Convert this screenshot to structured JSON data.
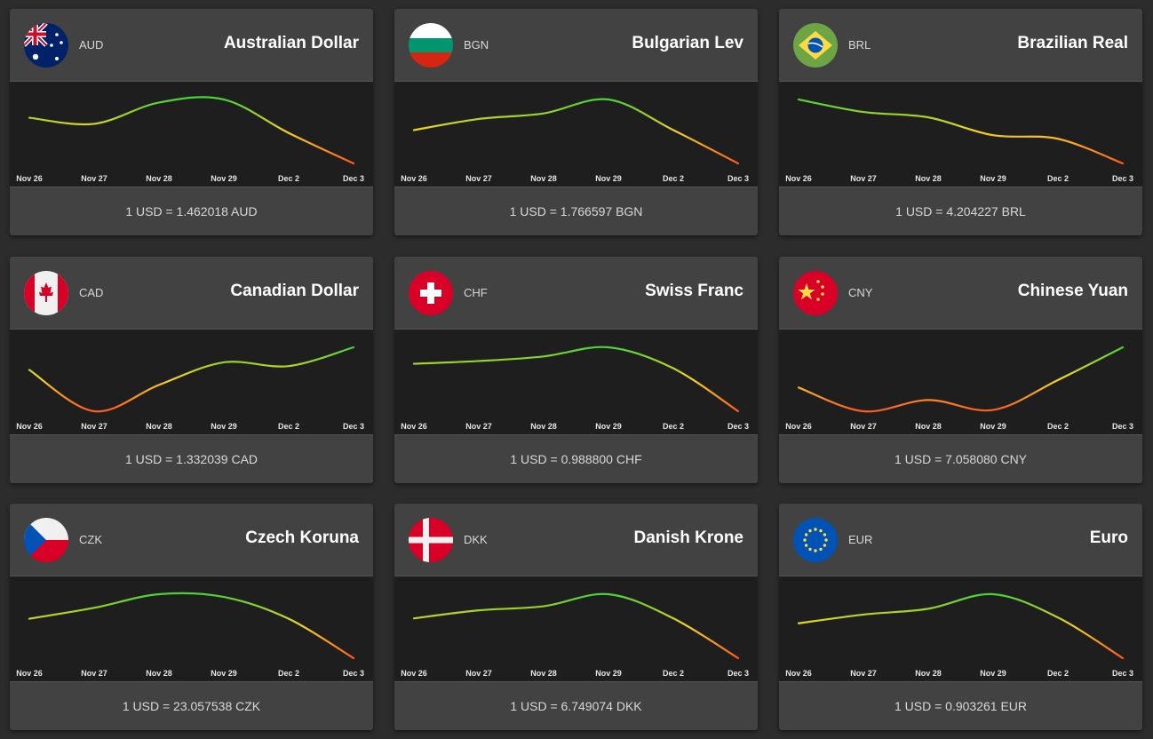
{
  "dates": [
    "Nov 26",
    "Nov 27",
    "Nov 28",
    "Nov 29",
    "Dec 2",
    "Dec 3"
  ],
  "gradient_colors": {
    "high": "#4cd137",
    "mid": "#f5d41f",
    "low": "#ff5a1f"
  },
  "currencies": [
    {
      "code": "AUD",
      "name": "Australian Dollar",
      "rate_text": "1 USD = 1.462018 AUD",
      "flag_icon": "australia-flag-icon",
      "trend": [
        1.4635,
        1.4633,
        1.464,
        1.4641,
        1.463,
        1.462
      ]
    },
    {
      "code": "BGN",
      "name": "Bulgarian Lev",
      "rate_text": "1 USD = 1.766597 BGN",
      "flag_icon": "bulgaria-flag-icon",
      "trend": [
        1.769,
        1.7698,
        1.7702,
        1.7712,
        1.769,
        1.7666
      ]
    },
    {
      "code": "BRL",
      "name": "Brazilian Real",
      "rate_text": "1 USD = 4.204227 BRL",
      "flag_icon": "brazil-flag-icon",
      "trend": [
        4.24,
        4.233,
        4.23,
        4.22,
        4.218,
        4.2042
      ]
    },
    {
      "code": "CAD",
      "name": "Canadian Dollar",
      "rate_text": "1 USD = 1.332039 CAD",
      "flag_icon": "canada-flag-icon",
      "trend": [
        1.329,
        1.3235,
        1.327,
        1.33,
        1.3295,
        1.332
      ]
    },
    {
      "code": "CHF",
      "name": "Swiss Franc",
      "rate_text": "1 USD = 0.988800 CHF",
      "flag_icon": "switzerland-flag-icon",
      "trend": [
        0.994,
        0.9943,
        0.9948,
        0.9958,
        0.9935,
        0.9888
      ]
    },
    {
      "code": "CNY",
      "name": "Chinese Yuan",
      "rate_text": "1 USD = 7.058080 CNY",
      "flag_icon": "china-flag-icon",
      "trend": [
        7.042,
        7.0325,
        7.037,
        7.033,
        7.045,
        7.0581
      ]
    },
    {
      "code": "CZK",
      "name": "Czech Koruna",
      "rate_text": "1 USD = 23.057538 CZK",
      "flag_icon": "czech-flag-icon",
      "trend": [
        23.13,
        23.15,
        23.175,
        23.17,
        23.13,
        23.0575
      ]
    },
    {
      "code": "DKK",
      "name": "Danish Krone",
      "rate_text": "1 USD = 6.749074 DKK",
      "flag_icon": "denmark-flag-icon",
      "trend": [
        6.759,
        6.761,
        6.762,
        6.765,
        6.759,
        6.7491
      ]
    },
    {
      "code": "EUR",
      "name": "Euro",
      "rate_text": "1 USD = 0.903261 EUR",
      "flag_icon": "eu-flag-icon",
      "trend": [
        0.9045,
        0.9048,
        0.905,
        0.9055,
        0.9047,
        0.9033
      ]
    }
  ]
}
